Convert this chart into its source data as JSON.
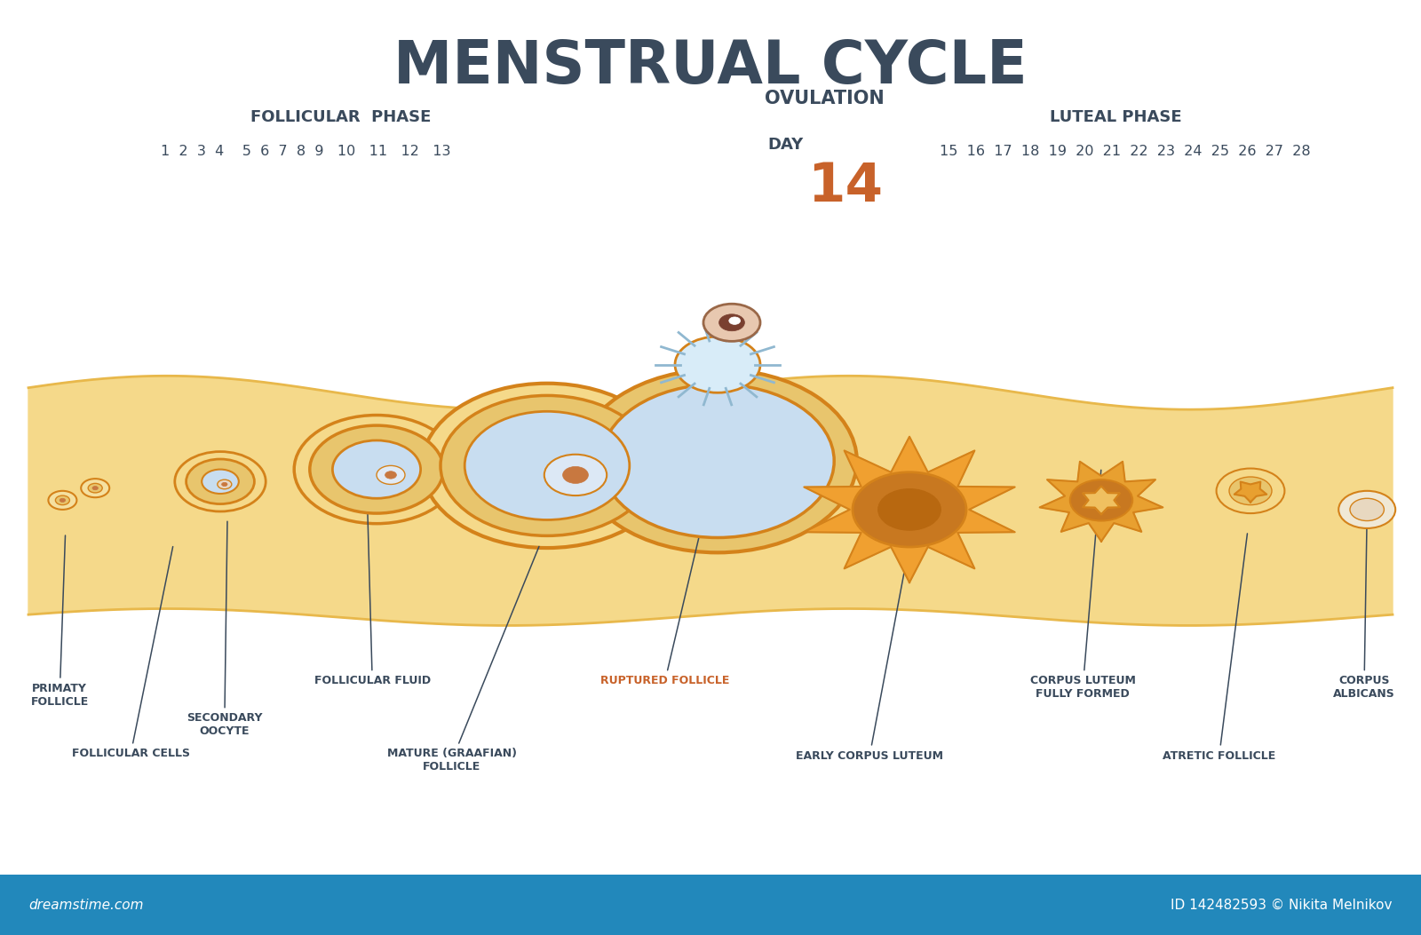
{
  "title": "MENSTRUAL CYCLE",
  "title_color": "#3a4a5c",
  "title_fontsize": 48,
  "background_color": "#ffffff",
  "footer_color": "#2288bb",
  "footer_text_left": "dreamstime.com",
  "footer_text_right": "ID 142482593 © Nikita Melnikov",
  "follicular_phase_label": "FOLLICULAR  PHASE",
  "luteal_phase_label": "LUTEAL PHASE",
  "ovulation_label": "OVULATION",
  "ovulation_day_label": "DAY",
  "ovulation_day_number": "14",
  "ovulation_color": "#c8622a",
  "ovulation_label_color": "#3a4a5c",
  "tissue_fill": "#f5d98a",
  "tissue_edge": "#e8b84b",
  "follicle_outer": "#d4821a",
  "follicle_inner": "#e8c56d",
  "follicle_fluid": "#c8ddf0",
  "follicle_nucleus": "#c87840",
  "corpus_luteum_spiky": "#f0a030",
  "label_color": "#3a4a5c",
  "orange_label_color": "#c8622a"
}
